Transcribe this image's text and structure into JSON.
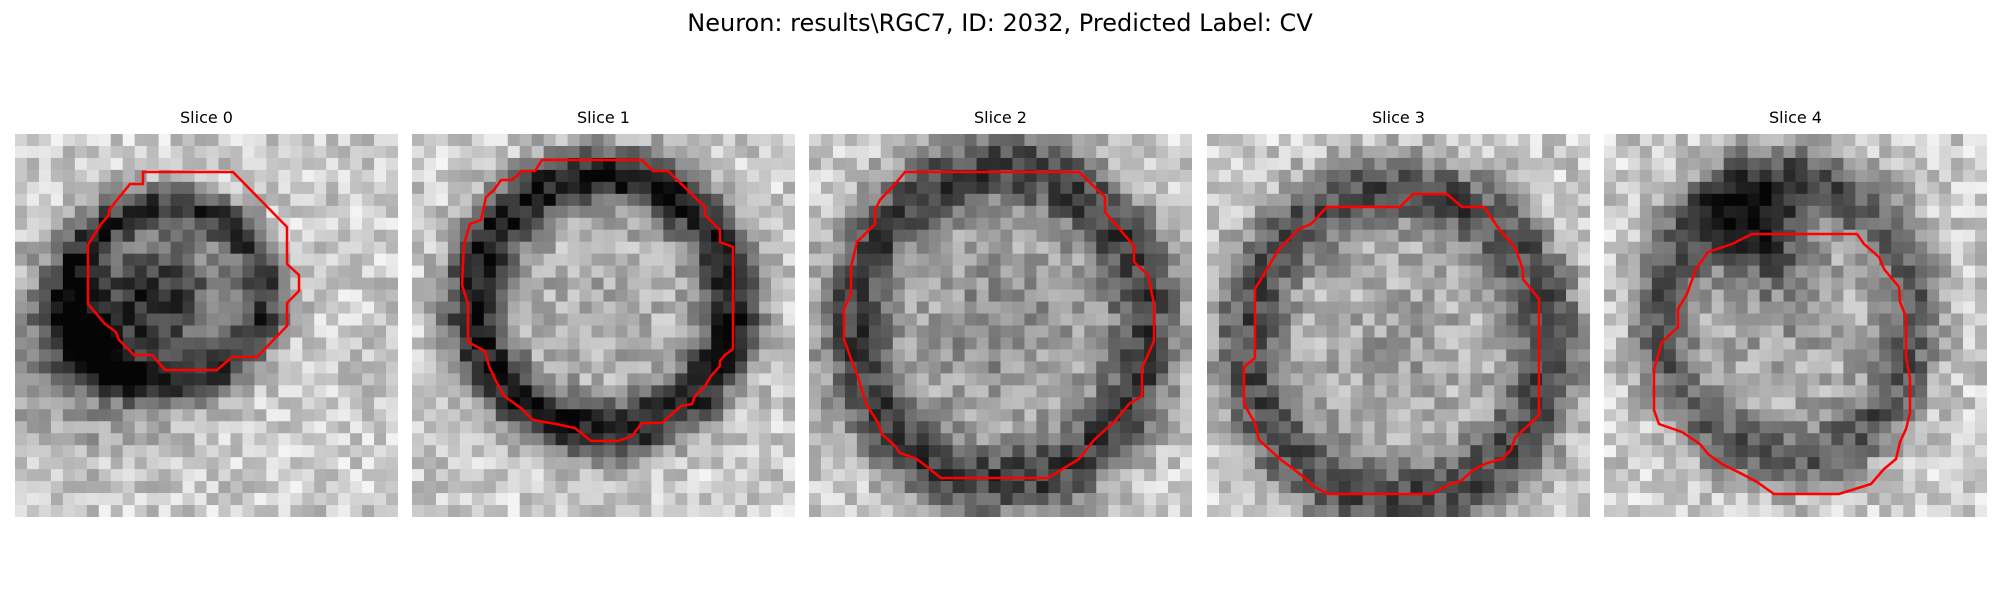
{
  "figure": {
    "title": "Neuron: results\\RGC7, ID: 2032, Predicted Label: CV",
    "contour_color": "#ff0000",
    "colormap": "grayscale"
  },
  "slices": [
    {
      "title": "Slice 0"
    },
    {
      "title": "Slice 1"
    },
    {
      "title": "Slice 2"
    },
    {
      "title": "Slice 3"
    },
    {
      "title": "Slice 4"
    }
  ]
}
